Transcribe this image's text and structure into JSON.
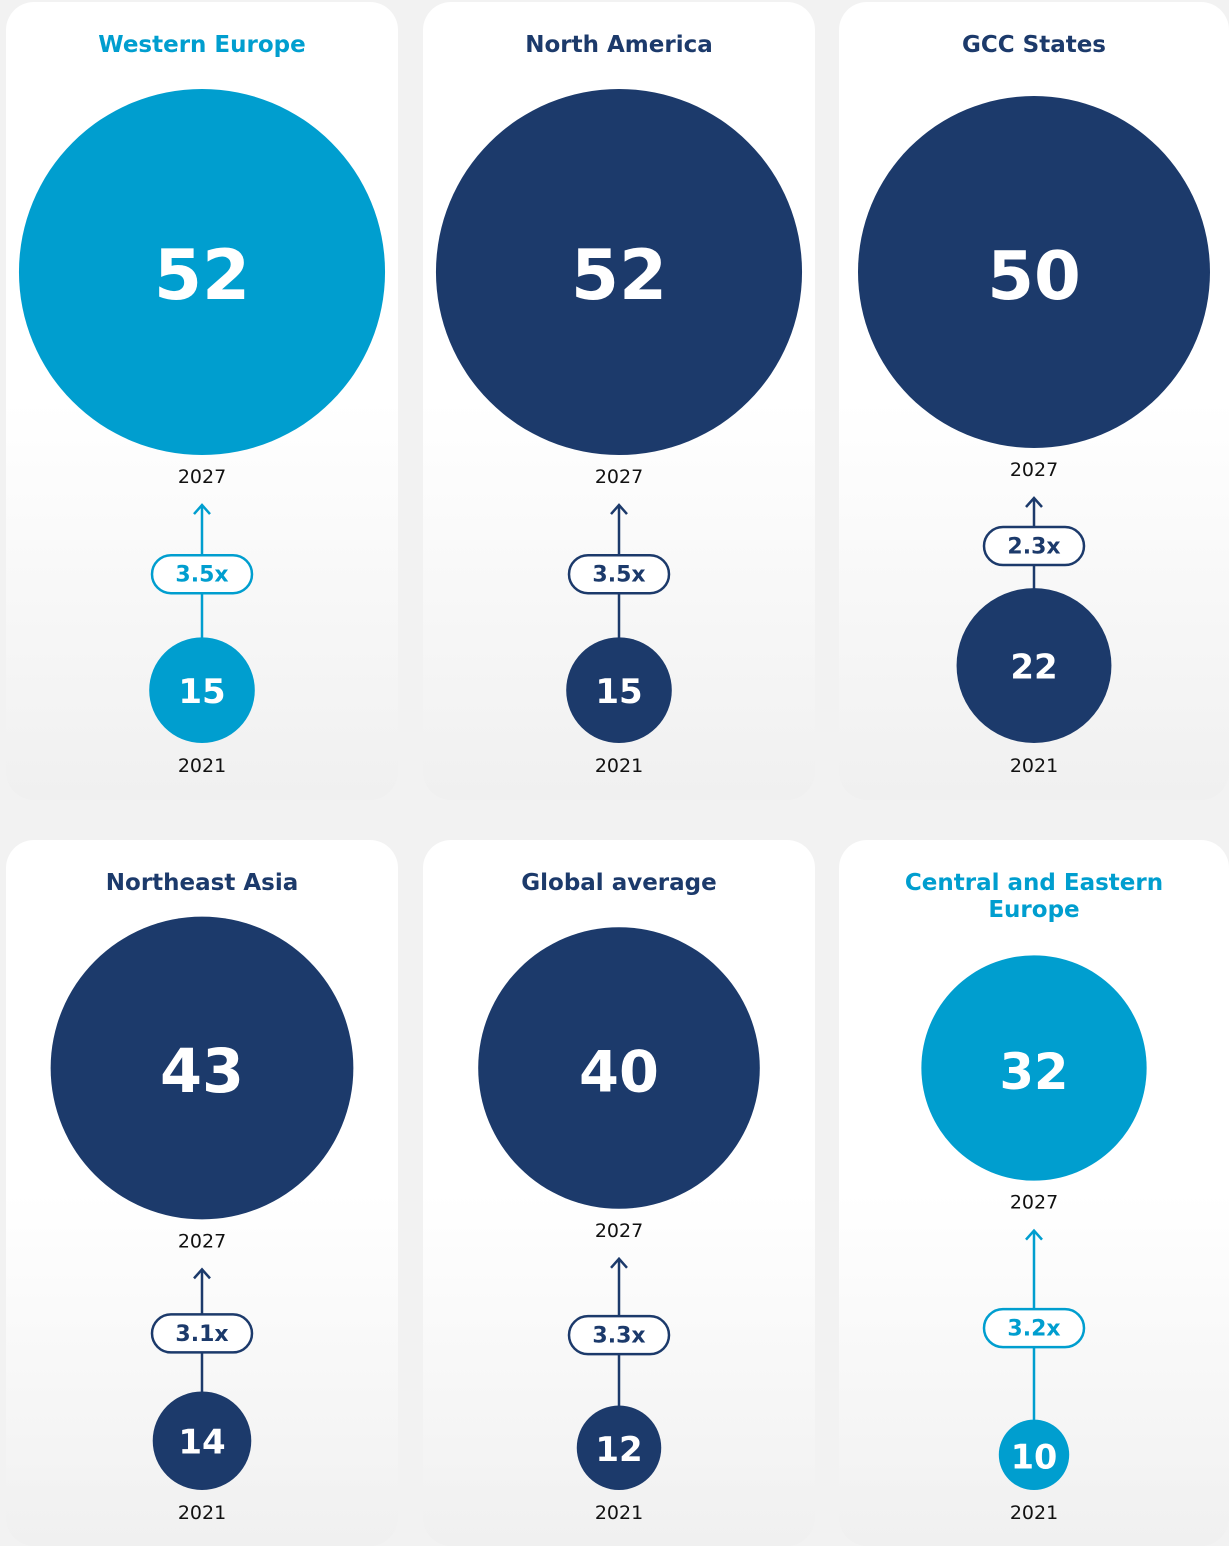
{
  "cards": [
    {
      "title": "Western Europe",
      "color": "#009ecf",
      "value_2027": 52,
      "label_2027": "2027",
      "multiplier": "3.5x",
      "value_2021": 15,
      "label_2021": "2021"
    },
    {
      "title": "North America",
      "color": "#1c3a6b",
      "value_2027": 52,
      "label_2027": "2027",
      "multiplier": "3.5x",
      "value_2021": 15,
      "label_2021": "2021"
    },
    {
      "title": "GCC States",
      "color": "#1c3a6b",
      "value_2027": 50,
      "label_2027": "2027",
      "multiplier": "2.3x",
      "value_2021": 22,
      "label_2021": "2021"
    },
    {
      "title": "Northeast Asia",
      "color": "#1c3a6b",
      "value_2027": 43,
      "label_2027": "2027",
      "multiplier": "3.1x",
      "value_2021": 14,
      "label_2021": "2021"
    },
    {
      "title": "Global average",
      "color": "#1c3a6b",
      "value_2027": 40,
      "label_2027": "2027",
      "multiplier": "3.3x",
      "value_2021": 12,
      "label_2021": "2021"
    },
    {
      "title": "Central and Eastern Europe",
      "color": "#009ecf",
      "value_2027": 32,
      "label_2027": "2027",
      "multiplier": "3.2x",
      "value_2021": 10,
      "label_2021": "2021"
    }
  ]
}
